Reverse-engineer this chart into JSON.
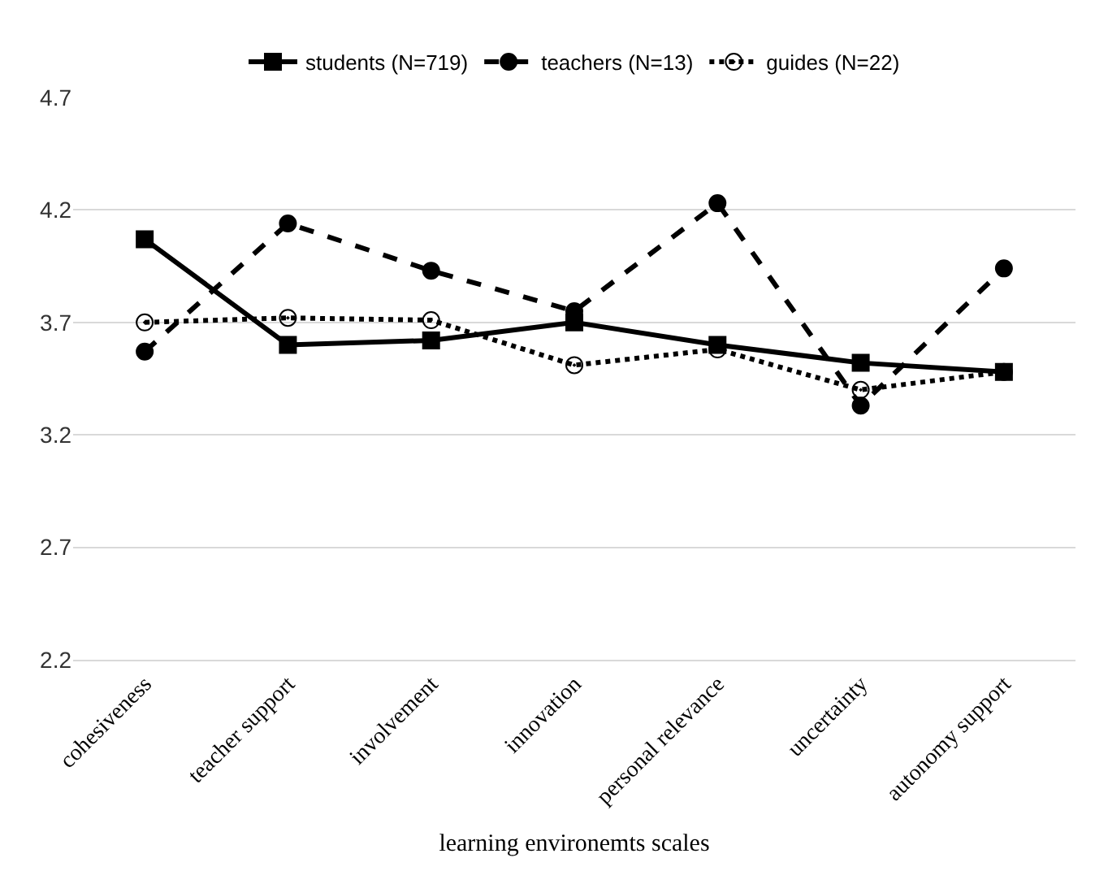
{
  "chart_data": {
    "type": "line",
    "xlabel": "learning environemts scales",
    "categories": [
      "cohesiveness",
      "teacher support",
      "involvement",
      "innovation",
      "personal relevance",
      "uncertainty",
      "autonomy support"
    ],
    "series": [
      {
        "name": "students (N=719)",
        "color": "#000000",
        "marker": "square",
        "line_style": "solid",
        "values": [
          4.07,
          3.6,
          3.62,
          3.7,
          3.6,
          3.52,
          3.48
        ]
      },
      {
        "name": "teachers (N=13)",
        "color": "#000000",
        "marker": "circle",
        "line_style": "dashed",
        "values": [
          3.57,
          4.14,
          3.93,
          3.75,
          4.23,
          3.33,
          3.94
        ]
      },
      {
        "name": "guides (N=22)",
        "color": "#000000",
        "marker": "circle-open-dot",
        "line_style": "dotted",
        "values": [
          3.7,
          3.72,
          3.71,
          3.51,
          3.58,
          3.4,
          3.48
        ]
      }
    ],
    "ylim": [
      2.2,
      4.7
    ],
    "yticks": [
      2.2,
      2.7,
      3.2,
      3.7,
      4.2,
      4.7
    ],
    "grid": "y",
    "legend": "top"
  }
}
